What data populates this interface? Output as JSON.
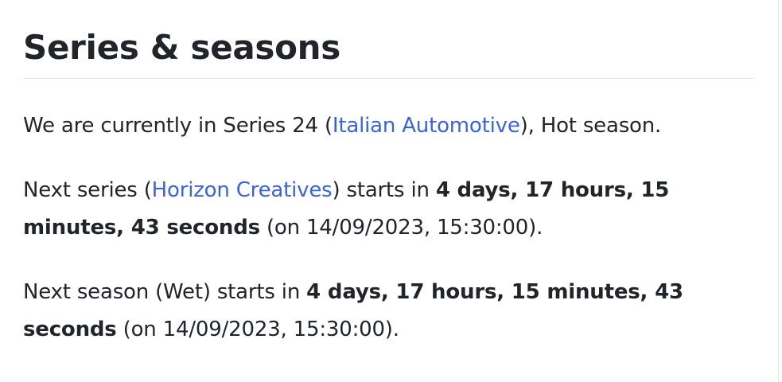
{
  "section": {
    "title": "Series & seasons"
  },
  "current": {
    "prefix": "We are currently in Series 24 (",
    "series_link": "Italian Automotive",
    "suffix": "), Hot season."
  },
  "next_series": {
    "prefix": "Next series (",
    "series_link": "Horizon Creatives",
    "middle": ") starts in ",
    "countdown": "4 days, 17 hours, 15 minutes, 43 seconds",
    "date": " (on 14/09/2023, 15:30:00)."
  },
  "next_season": {
    "prefix": "Next season (Wet) starts in ",
    "countdown": "4 days, 17 hours, 15 minutes, 43 seconds",
    "date": " (on 14/09/2023, 15:30:00)."
  },
  "colors": {
    "text": "#212529",
    "link": "#3c64d4",
    "divider": "#e2e4e7"
  }
}
